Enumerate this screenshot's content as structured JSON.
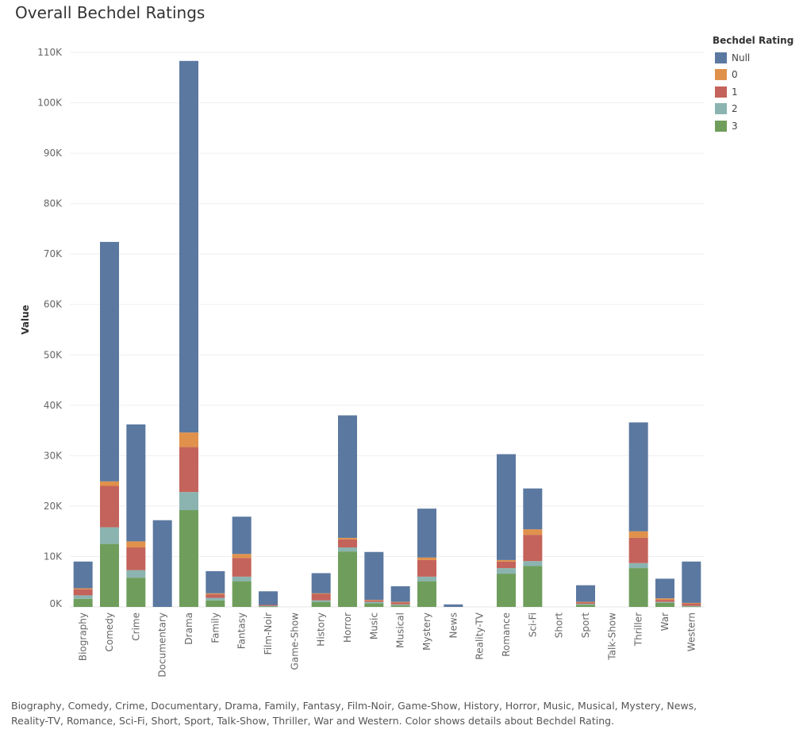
{
  "chart_data": {
    "type": "bar",
    "stacked": true,
    "title": "Overall Bechdel Ratings",
    "xlabel": "",
    "ylabel": "Value",
    "ylim": [
      0,
      110000
    ],
    "yticks": [
      0,
      10000,
      20000,
      30000,
      40000,
      50000,
      60000,
      70000,
      80000,
      90000,
      100000,
      110000
    ],
    "ytick_labels": [
      "0K",
      "10K",
      "20K",
      "30K",
      "40K",
      "50K",
      "60K",
      "70K",
      "80K",
      "90K",
      "100K",
      "110K"
    ],
    "grid": true,
    "legend_position": "right",
    "legend_title": "Bechdel Rating",
    "categories": [
      "Biography",
      "Comedy",
      "Crime",
      "Documentary",
      "Drama",
      "Family",
      "Fantasy",
      "Film-Noir",
      "Game-Show",
      "History",
      "Horror",
      "Music",
      "Musical",
      "Mystery",
      "News",
      "Reality-TV",
      "Romance",
      "Sci-Fi",
      "Short",
      "Sport",
      "Talk-Show",
      "Thriller",
      "War",
      "Western"
    ],
    "series": [
      {
        "name": "3",
        "color": "#6f9e5c",
        "values": [
          1600,
          12500,
          5800,
          0,
          19200,
          1300,
          5100,
          100,
          0,
          1000,
          11000,
          700,
          300,
          5100,
          0,
          0,
          6600,
          8100,
          0,
          400,
          0,
          7700,
          800,
          100
        ]
      },
      {
        "name": "2",
        "color": "#8bb4b0",
        "values": [
          700,
          3300,
          1500,
          0,
          3600,
          500,
          900,
          100,
          0,
          300,
          800,
          300,
          200,
          900,
          0,
          0,
          1100,
          1000,
          0,
          200,
          0,
          1000,
          200,
          100
        ]
      },
      {
        "name": "1",
        "color": "#c4635b",
        "values": [
          1200,
          8200,
          4500,
          0,
          8900,
          700,
          3700,
          200,
          0,
          1300,
          1600,
          300,
          400,
          3300,
          0,
          0,
          1300,
          5200,
          0,
          300,
          0,
          5000,
          400,
          500
        ]
      },
      {
        "name": "0",
        "color": "#e0914b",
        "values": [
          200,
          900,
          1200,
          0,
          2900,
          200,
          800,
          0,
          0,
          100,
          300,
          100,
          100,
          500,
          0,
          0,
          300,
          1100,
          0,
          100,
          0,
          1300,
          300,
          100
        ]
      },
      {
        "name": "Null",
        "color": "#5b78a0",
        "values": [
          5300,
          47500,
          23200,
          17200,
          73700,
          4400,
          7400,
          2700,
          0,
          4000,
          24300,
          9500,
          3100,
          9700,
          500,
          0,
          21000,
          8100,
          0,
          3300,
          0,
          21600,
          3900,
          8200
        ]
      }
    ]
  },
  "legend": {
    "title": "Bechdel Rating",
    "items": [
      {
        "label": "Null",
        "color": "#5b78a0"
      },
      {
        "label": "0",
        "color": "#e0914b"
      },
      {
        "label": "1",
        "color": "#c4635b"
      },
      {
        "label": "2",
        "color": "#8bb4b0"
      },
      {
        "label": "3",
        "color": "#6f9e5c"
      }
    ]
  },
  "caption": "Biography, Comedy, Crime, Documentary, Drama, Family, Fantasy, Film-Noir, Game-Show, History, Horror, Music, Musical, Mystery, News, Reality-TV, Romance, Sci-Fi, Short, Sport, Talk-Show, Thriller, War and Western.  Color shows details about Bechdel Rating."
}
